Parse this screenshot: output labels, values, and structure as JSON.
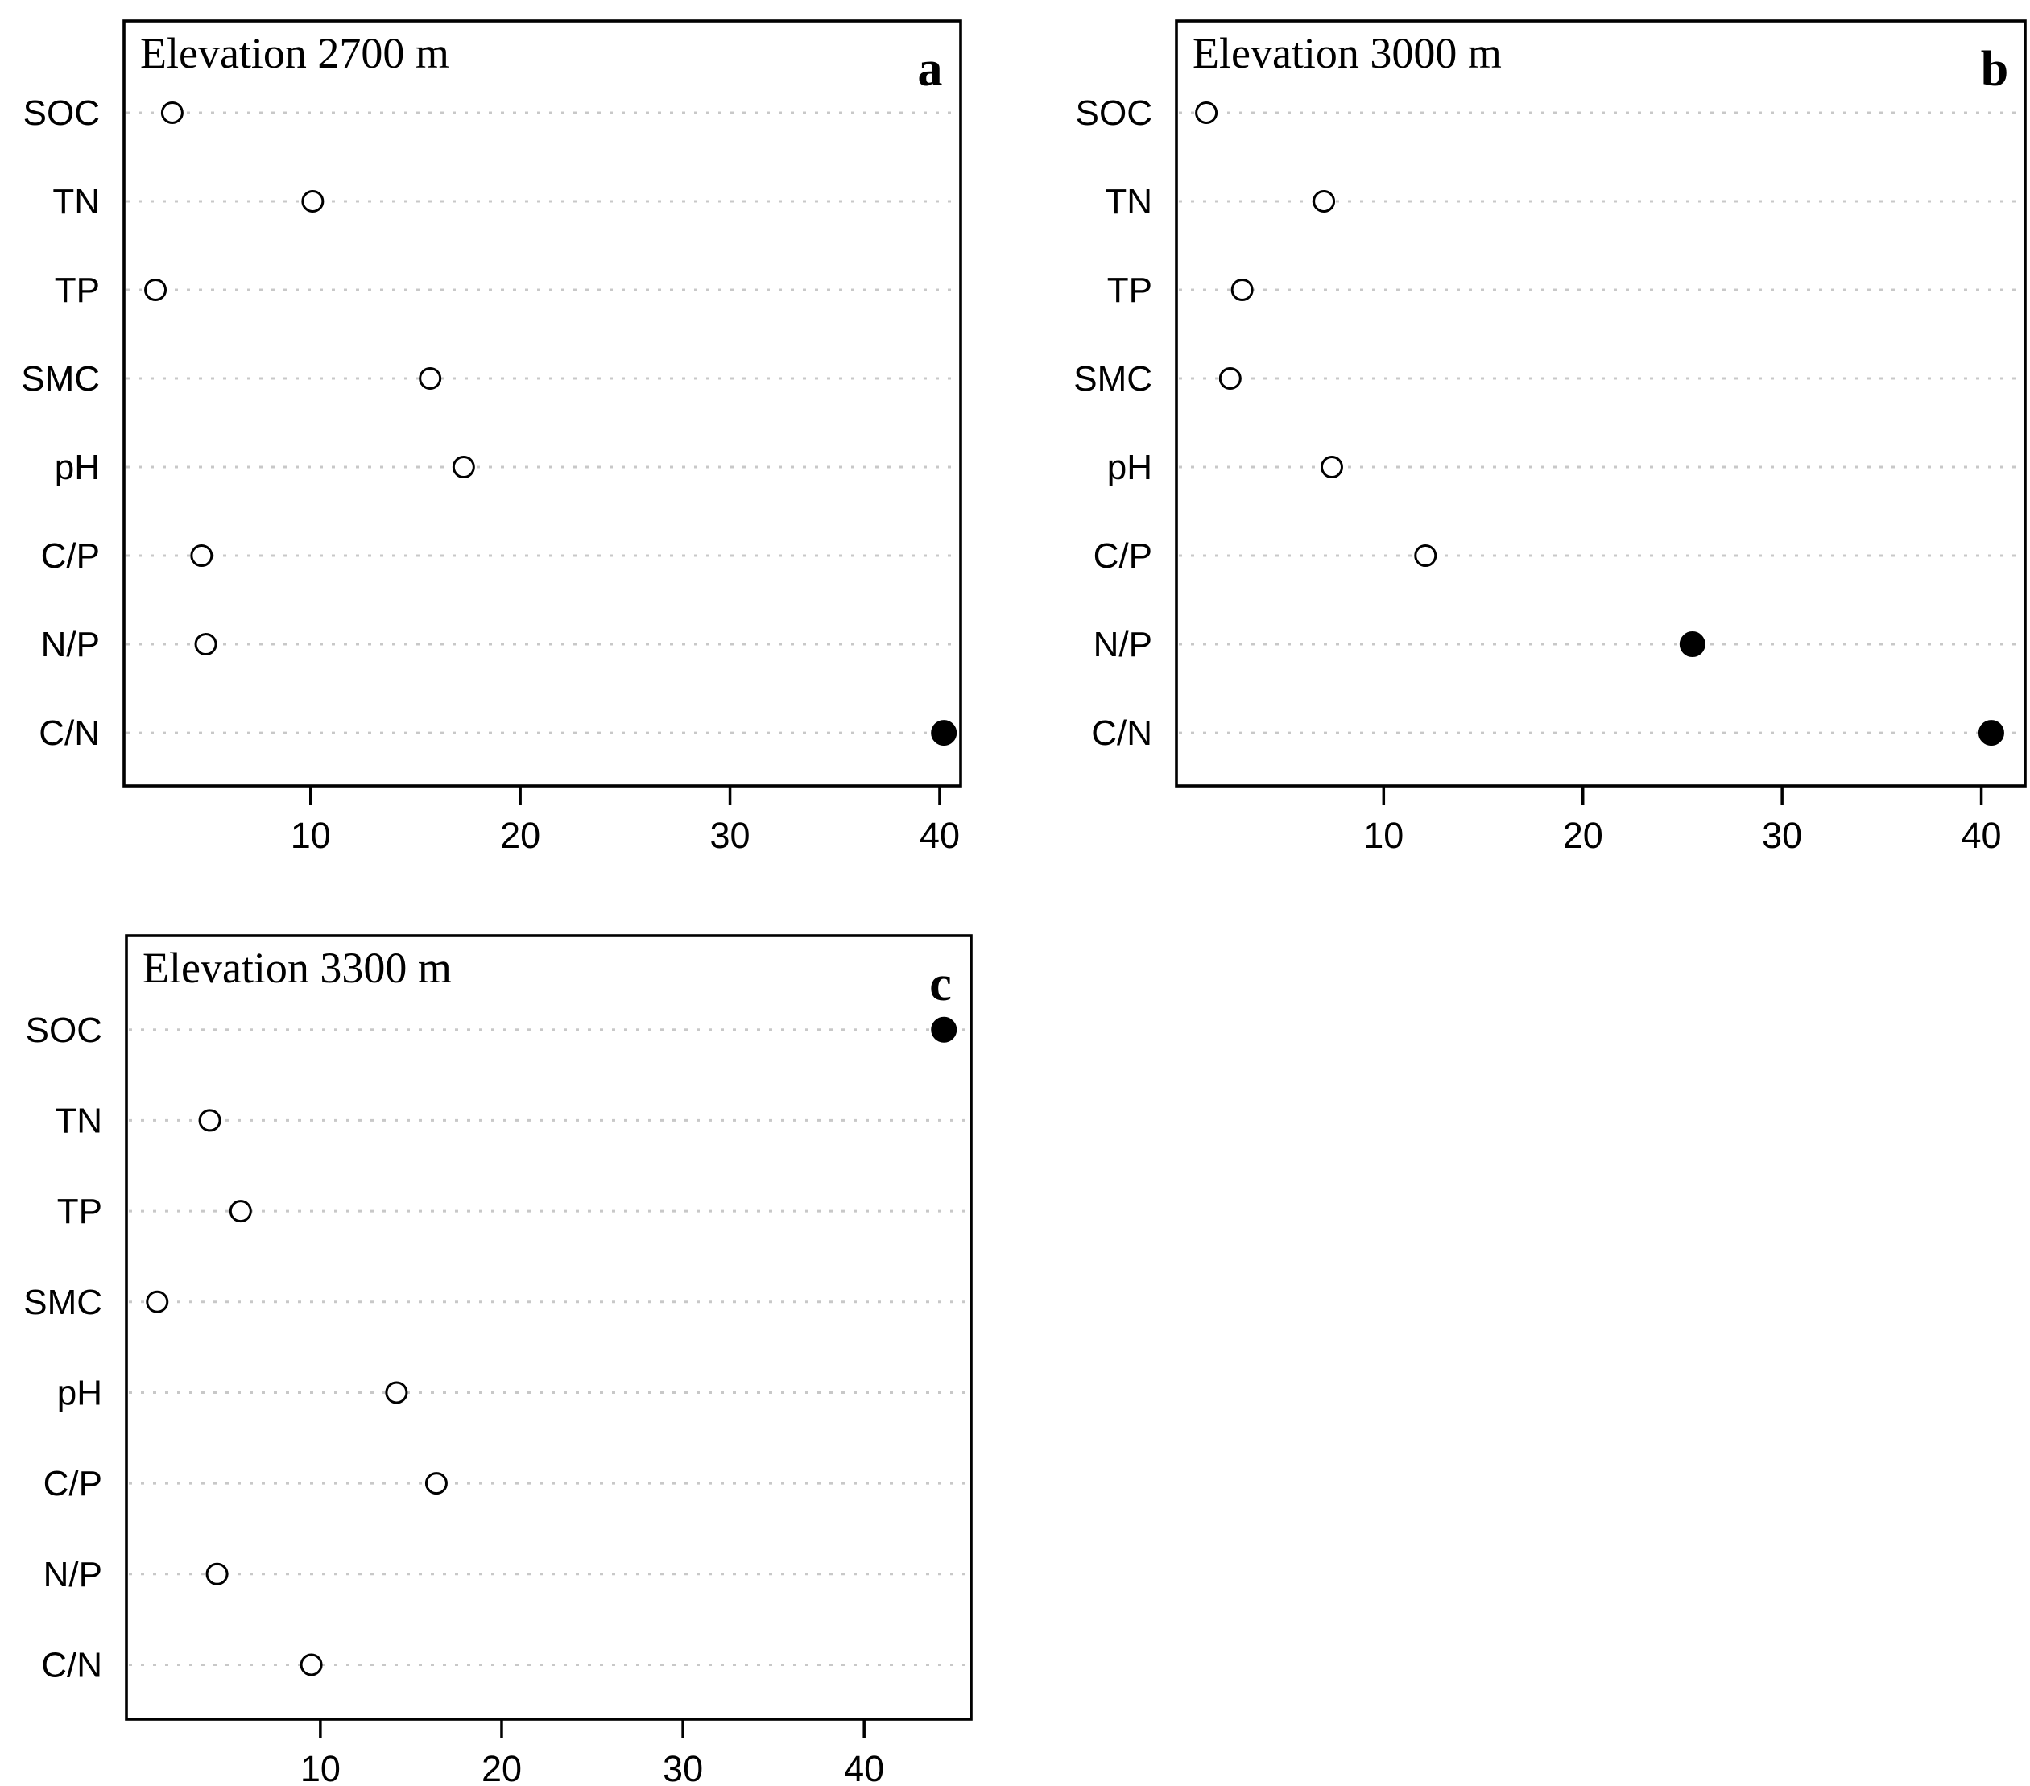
{
  "figure": {
    "background": "#ffffff",
    "text_color": "#000000",
    "border_color": "#000000",
    "grid_color": "#c8c8c8",
    "point_color": "#000000",
    "open_marker_fill": "#ffffff",
    "marker_open": "open-circle",
    "marker_filled": "filled-circle"
  },
  "chart_data": [
    {
      "type": "scatter",
      "panel_label": "a",
      "title": "Elevation 2700 m",
      "categories_top_to_bottom": [
        "SOC",
        "TN",
        "TP",
        "SMC",
        "pH",
        "C/P",
        "N/P",
        "C/N"
      ],
      "values": [
        3.4,
        10.1,
        2.6,
        15.7,
        17.3,
        4.8,
        5.0,
        40.2
      ],
      "filled": [
        false,
        false,
        false,
        false,
        false,
        false,
        false,
        true
      ],
      "xticks": [
        10,
        20,
        30,
        40
      ],
      "xlim": [
        1.1,
        41.0
      ],
      "xlabel": "",
      "ylabel": "",
      "grid": "horizontal-dotted",
      "legend": "none"
    },
    {
      "type": "scatter",
      "panel_label": "b",
      "title": "Elevation 3000 m",
      "categories_top_to_bottom": [
        "SOC",
        "TN",
        "TP",
        "SMC",
        "pH",
        "C/P",
        "N/P",
        "C/N"
      ],
      "values": [
        1.1,
        7.0,
        2.9,
        2.3,
        7.4,
        12.1,
        25.5,
        40.5
      ],
      "filled": [
        false,
        false,
        false,
        false,
        false,
        false,
        true,
        true
      ],
      "xticks": [
        10,
        20,
        30,
        40
      ],
      "xlim": [
        -0.4,
        42.2
      ],
      "xlabel": "",
      "ylabel": "",
      "grid": "horizontal-dotted",
      "legend": "none"
    },
    {
      "type": "scatter",
      "panel_label": "c",
      "title": "Elevation 3300 m",
      "categories_top_to_bottom": [
        "SOC",
        "TN",
        "TP",
        "SMC",
        "pH",
        "C/P",
        "N/P",
        "C/N"
      ],
      "values": [
        44.4,
        3.9,
        5.6,
        1.0,
        14.2,
        16.4,
        4.3,
        9.5
      ],
      "filled": [
        true,
        false,
        false,
        false,
        false,
        false,
        false,
        false
      ],
      "xticks": [
        10,
        20,
        30,
        40
      ],
      "xlim": [
        -0.7,
        45.9
      ],
      "xlabel": "",
      "ylabel": "",
      "grid": "horizontal-dotted",
      "legend": "none"
    }
  ]
}
